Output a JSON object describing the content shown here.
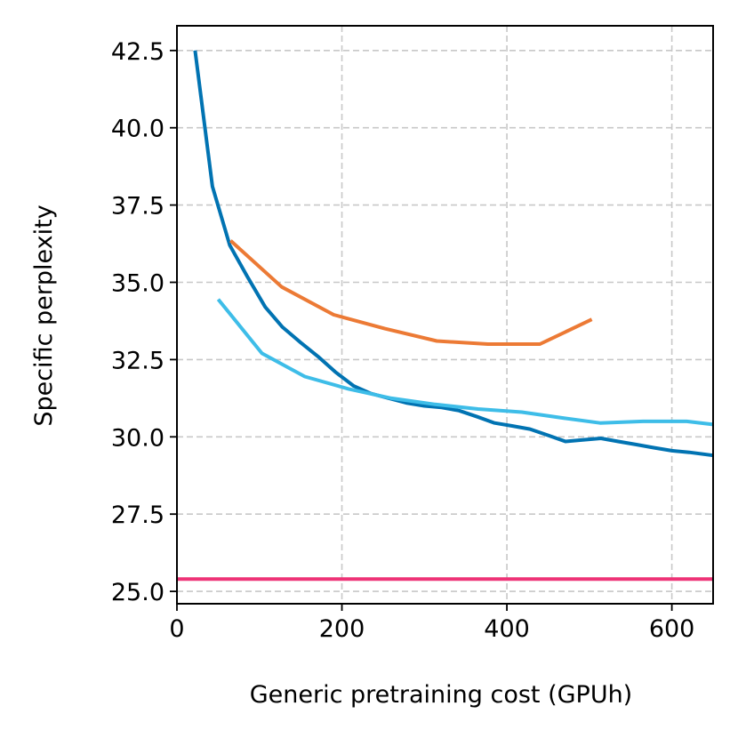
{
  "chart_data": {
    "type": "line",
    "title": "",
    "xlabel": "Generic pretraining cost (GPUh)",
    "ylabel": "Specific perplexity",
    "xlim": [
      0,
      650
    ],
    "ylim": [
      24.6,
      43.3
    ],
    "grid": true,
    "xticks": [
      0,
      200,
      400,
      600
    ],
    "xtick_labels": [
      "0",
      "200",
      "400",
      "600"
    ],
    "yticks": [
      25.0,
      27.5,
      30.0,
      32.5,
      35.0,
      37.5,
      40.0,
      42.5
    ],
    "ytick_labels": [
      "25.0",
      "27.5",
      "30.0",
      "32.5",
      "35.0",
      "37.5",
      "40.0",
      "42.5"
    ],
    "series": [
      {
        "name": "dark-blue",
        "color": "#0173b2",
        "x": [
          22,
          43,
          64,
          85,
          107,
          128,
          150,
          171,
          192,
          214,
          235,
          257,
          278,
          300,
          321,
          342,
          364,
          385,
          407,
          428,
          450,
          471,
          492,
          514,
          535,
          557,
          578,
          600,
          621,
          650
        ],
        "y": [
          42.5,
          38.1,
          36.2,
          35.2,
          34.2,
          33.55,
          33.05,
          32.6,
          32.1,
          31.65,
          31.4,
          31.25,
          31.1,
          31.0,
          30.95,
          30.85,
          30.65,
          30.45,
          30.35,
          30.25,
          30.05,
          29.85,
          29.9,
          29.95,
          29.85,
          29.75,
          29.65,
          29.55,
          29.5,
          29.4
        ]
      },
      {
        "name": "orange",
        "color": "#ec7a35",
        "x": [
          65,
          127,
          190,
          252,
          315,
          377,
          440,
          503
        ],
        "y": [
          36.35,
          34.85,
          33.95,
          33.5,
          33.1,
          33.0,
          33.0,
          33.8
        ]
      },
      {
        "name": "light-blue",
        "color": "#3ebde8",
        "x": [
          50,
          103,
          155,
          208,
          260,
          313,
          365,
          418,
          470,
          513,
          565,
          618,
          650
        ],
        "y": [
          34.45,
          32.7,
          31.95,
          31.55,
          31.25,
          31.05,
          30.9,
          30.8,
          30.6,
          30.45,
          30.5,
          30.5,
          30.4
        ]
      },
      {
        "name": "baseline",
        "color": "#ee3377",
        "x": [
          0,
          650
        ],
        "y": [
          25.4,
          25.4
        ]
      }
    ]
  }
}
